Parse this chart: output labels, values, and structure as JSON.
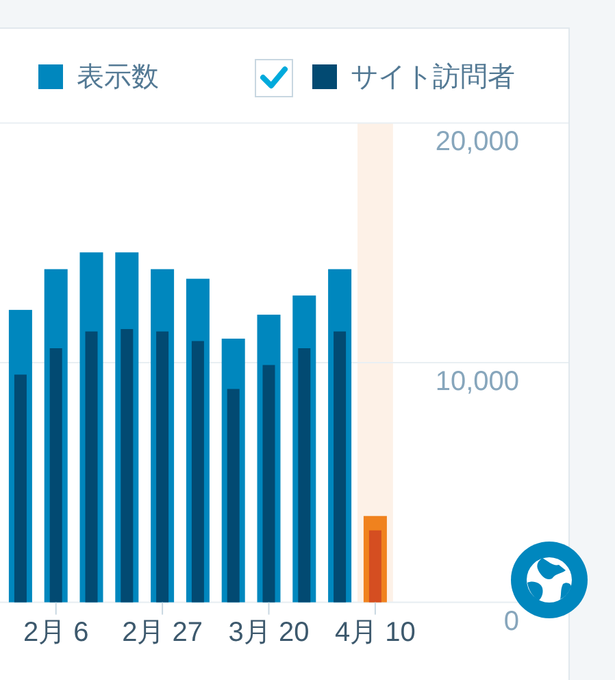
{
  "chart_data": {
    "type": "bar",
    "categories": [
      null,
      "2月 6",
      null,
      null,
      "2月 27",
      null,
      null,
      "3月 20",
      null,
      null,
      "4月 10"
    ],
    "series": [
      {
        "name": "表示数",
        "color": "#0087be",
        "colors": [
          "#0087be",
          "#0087be",
          "#0087be",
          "#0087be",
          "#0087be",
          "#0087be",
          "#0087be",
          "#0087be",
          "#0087be",
          "#0087be",
          "#f0821e"
        ],
        "values": [
          12200,
          13900,
          14600,
          14600,
          13900,
          13500,
          11000,
          12000,
          12800,
          13900,
          3600
        ]
      },
      {
        "name": "サイト訪問者",
        "color": "#024a72",
        "colors": [
          "#024a72",
          "#024a72",
          "#024a72",
          "#024a72",
          "#024a72",
          "#024a72",
          "#024a72",
          "#024a72",
          "#024a72",
          "#024a72",
          "#d54e21"
        ],
        "values": [
          9500,
          10600,
          11300,
          11400,
          11300,
          10900,
          8900,
          9900,
          10600,
          11300,
          3000
        ]
      }
    ],
    "ylim": [
      0,
      20000
    ],
    "yticks": [
      0,
      {
        "value": 10000,
        "label": "10,000"
      },
      {
        "value": 20000,
        "label": "20,000"
      }
    ],
    "grid": "y",
    "legend": "top",
    "bands": [
      {
        "axis": "x",
        "from": "4月 10",
        "to": "4月 10",
        "color": "#fdf1e7"
      }
    ]
  }
}
